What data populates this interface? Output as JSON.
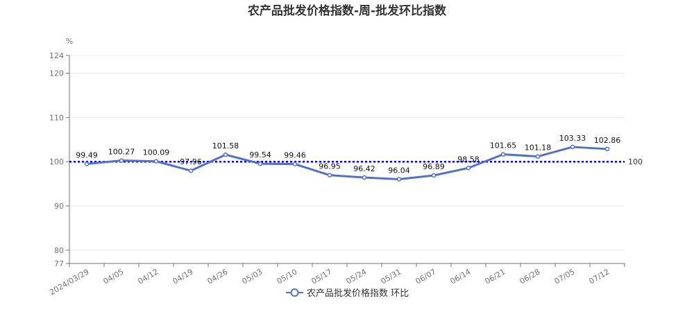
{
  "chart_data": {
    "type": "line",
    "title": "农产品批发价格指数-周-批发环比指数",
    "ylabel": "%",
    "categories": [
      "2024/03/29",
      "04/05",
      "04/12",
      "04/19",
      "04/26",
      "05/03",
      "05/10",
      "05/17",
      "05/24",
      "05/31",
      "06/07",
      "06/14",
      "06/21",
      "06/28",
      "07/05",
      "07/12"
    ],
    "series": [
      {
        "name": "农产品批发价格指数  环比",
        "values": [
          99.49,
          100.27,
          100.09,
          97.96,
          101.58,
          99.54,
          99.46,
          96.95,
          96.42,
          96.04,
          96.89,
          98.58,
          101.65,
          101.18,
          103.33,
          102.86
        ],
        "color": "#5470c6"
      }
    ],
    "ylim": [
      77,
      124
    ],
    "yticks": [
      77,
      80,
      90,
      100,
      110,
      120,
      124
    ],
    "reference_line": {
      "value": 100,
      "label": "100",
      "color": "#0000cc"
    },
    "grid": true,
    "legend": "bottom"
  }
}
